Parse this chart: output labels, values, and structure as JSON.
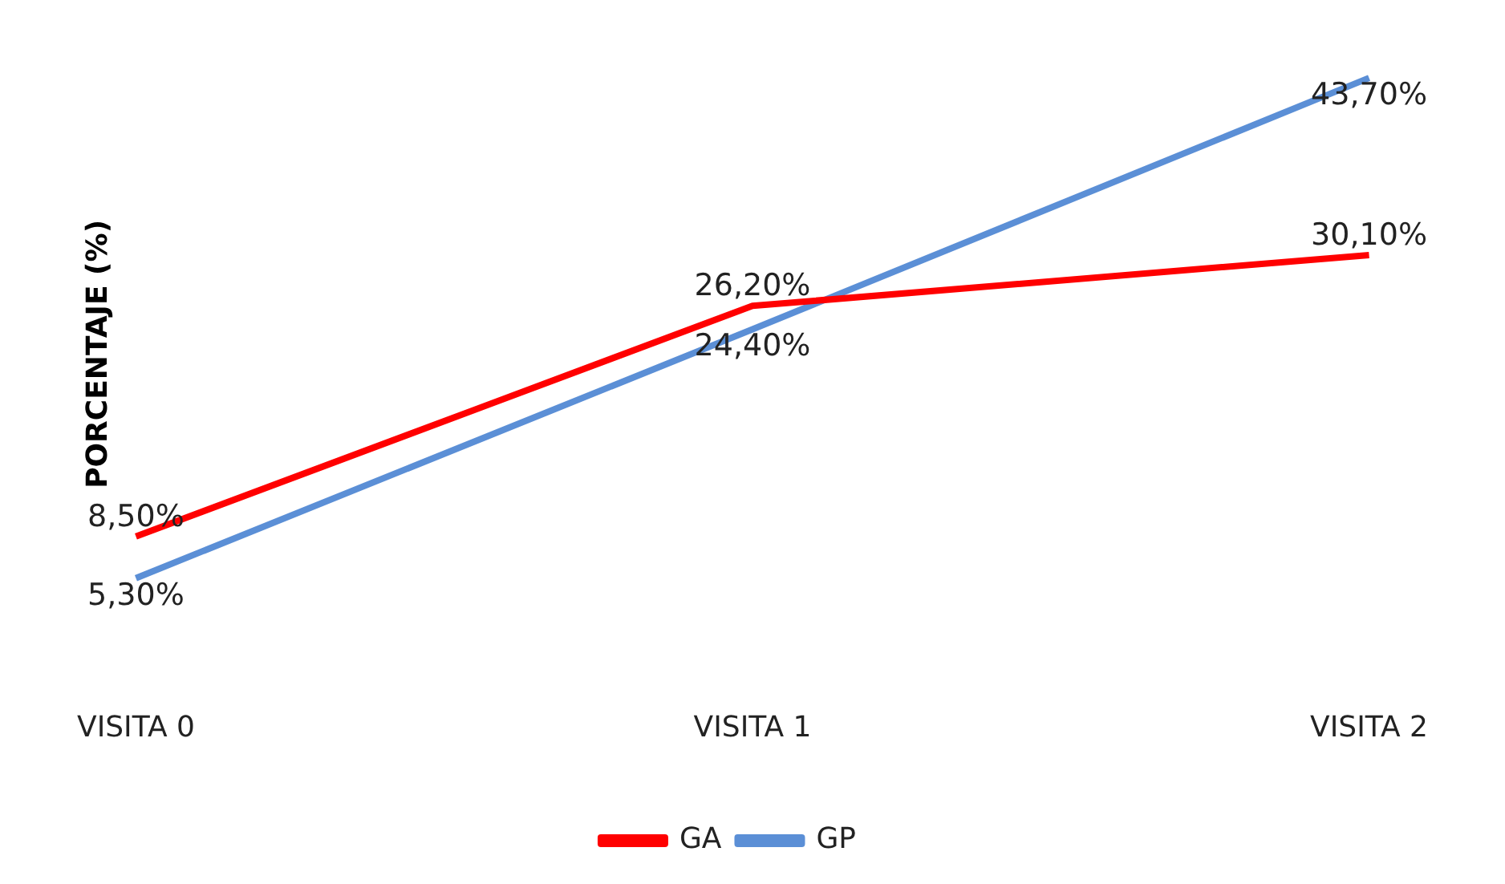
{
  "chart_data": {
    "type": "line",
    "ylabel": "PORCENTAJE (%)",
    "categories": [
      "VISITA 0",
      "VISITA 1",
      "VISITA 2"
    ],
    "series": [
      {
        "name": "GA",
        "color": "#ff0000",
        "values": [
          8.5,
          26.2,
          30.1
        ],
        "value_labels": [
          "8,50%",
          "26,20%",
          "30,10%"
        ]
      },
      {
        "name": "GP",
        "color": "#5b8fd6",
        "values": [
          5.3,
          24.4,
          43.7
        ],
        "value_labels": [
          "5,30%",
          "24,40%",
          "43,70%"
        ]
      }
    ],
    "legend": "bottom",
    "grid": false,
    "marker": "none",
    "line_style": "solid"
  }
}
